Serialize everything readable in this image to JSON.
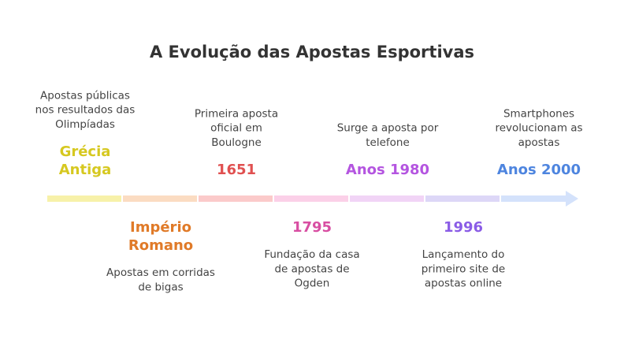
{
  "title": "A Evolução das Apostas Esportivas",
  "events": [
    {
      "label": [
        "Grécia",
        "Antiga"
      ],
      "description": [
        "Apostas públicas",
        "nos resultados das",
        "Olimpíadas"
      ],
      "color": "#d6c820",
      "bar_color": "#f7f1a9"
    },
    {
      "label": [
        "Império",
        "Romano"
      ],
      "description": [
        "Apostas em corridas",
        "de bigas"
      ],
      "color": "#e07a28",
      "bar_color": "#fbdcc2"
    },
    {
      "label": [
        "1651"
      ],
      "description": [
        "Primeira aposta",
        "oficial em",
        "Boulogne"
      ],
      "color": "#e05050",
      "bar_color": "#fbcaca"
    },
    {
      "label": [
        "1795"
      ],
      "description": [
        "Fundação da casa",
        "de apostas de",
        "Ogden"
      ],
      "color": "#d84ea2",
      "bar_color": "#fbd0e8"
    },
    {
      "label": [
        "Anos 1980"
      ],
      "description": [
        "Surge a aposta por",
        "telefone"
      ],
      "color": "#b455e0",
      "bar_color": "#f1d4f6"
    },
    {
      "label": [
        "1996"
      ],
      "description": [
        "Lançamento do",
        "primeiro site de",
        "apostas online"
      ],
      "color": "#8a5ce6",
      "bar_color": "#ddd7f7"
    },
    {
      "label": [
        "Anos 2000"
      ],
      "description": [
        "Smartphones",
        "revolucionam as",
        "apostas"
      ],
      "color": "#4e85df",
      "bar_color": "#d4e2fb"
    }
  ]
}
